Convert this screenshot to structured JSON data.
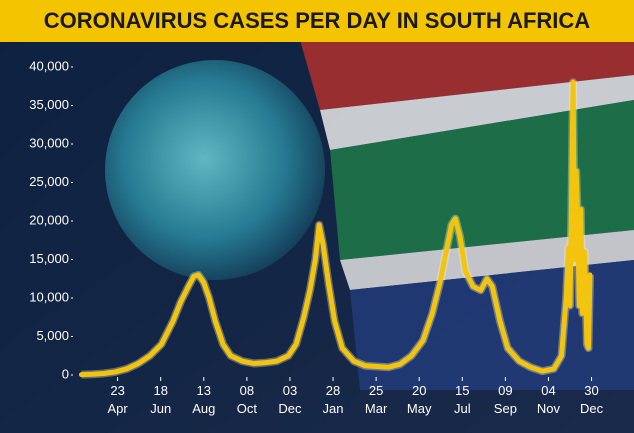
{
  "chart_data": {
    "type": "line",
    "title": "CORONAVIRUS CASES PER DAY IN SOUTH AFRICA",
    "x": [
      6,
      20,
      35,
      50,
      65,
      80,
      95,
      110,
      125,
      135,
      145,
      152,
      158,
      165,
      172,
      180,
      190,
      200,
      215,
      230,
      245,
      260,
      275,
      285,
      295,
      303,
      310,
      315,
      320,
      327,
      335,
      345,
      360,
      375,
      390,
      405,
      420,
      435,
      450,
      462,
      472,
      480,
      487,
      492,
      498,
      505,
      515,
      525,
      533,
      540,
      550,
      560,
      575,
      590,
      605,
      620,
      630,
      636,
      639,
      641,
      643,
      645,
      647,
      649,
      651,
      653,
      655,
      657,
      660,
      663,
      665,
      667
    ],
    "series": [
      {
        "name": "Cases per day",
        "color": "#f2c40d",
        "values": [
          50,
          100,
          200,
          400,
          800,
          1500,
          2500,
          4000,
          7000,
          9500,
          11500,
          12800,
          13000,
          12000,
          10000,
          7000,
          4000,
          2500,
          1800,
          1500,
          1600,
          1800,
          2500,
          4000,
          7500,
          11000,
          15000,
          19500,
          17000,
          12000,
          7000,
          3500,
          1800,
          1200,
          1100,
          1000,
          1400,
          2500,
          4500,
          8000,
          12000,
          16000,
          19500,
          20300,
          18000,
          13500,
          11500,
          11000,
          12500,
          11500,
          7000,
          3500,
          1800,
          1000,
          500,
          800,
          2500,
          10000,
          16500,
          9000,
          22500,
          38000,
          15000,
          26500,
          20000,
          9000,
          21500,
          8000,
          16000,
          4000,
          3500,
          13000
        ]
      }
    ],
    "xlim": [
      -5,
      680
    ],
    "xticks": [
      {
        "value": 53,
        "label": "23 Apr"
      },
      {
        "value": 109,
        "label": "18 Jun"
      },
      {
        "value": 165,
        "label": "13 Aug"
      },
      {
        "value": 221,
        "label": "08 Oct"
      },
      {
        "value": 277,
        "label": "03 Dec"
      },
      {
        "value": 333,
        "label": "28 Jan"
      },
      {
        "value": 389,
        "label": "25 Mar"
      },
      {
        "value": 445,
        "label": "20 May"
      },
      {
        "value": 501,
        "label": "15 Jul"
      },
      {
        "value": 557,
        "label": "09 Sep"
      },
      {
        "value": 613,
        "label": "04 Nov"
      },
      {
        "value": 669,
        "label": "30 Dec"
      }
    ],
    "ylim": [
      0,
      40000
    ],
    "yticks": [
      0,
      {
        "value": 5000,
        "label": "5,000"
      },
      {
        "value": 10000,
        "label": "10,000"
      },
      {
        "value": 15000,
        "label": "15,000"
      },
      {
        "value": 20000,
        "label": "20,000"
      },
      {
        "value": 25000,
        "label": "25,000"
      },
      {
        "value": 30000,
        "label": "30,000"
      },
      {
        "value": 35000,
        "label": "35,000"
      },
      {
        "value": 40000,
        "label": "40,000"
      }
    ]
  }
}
